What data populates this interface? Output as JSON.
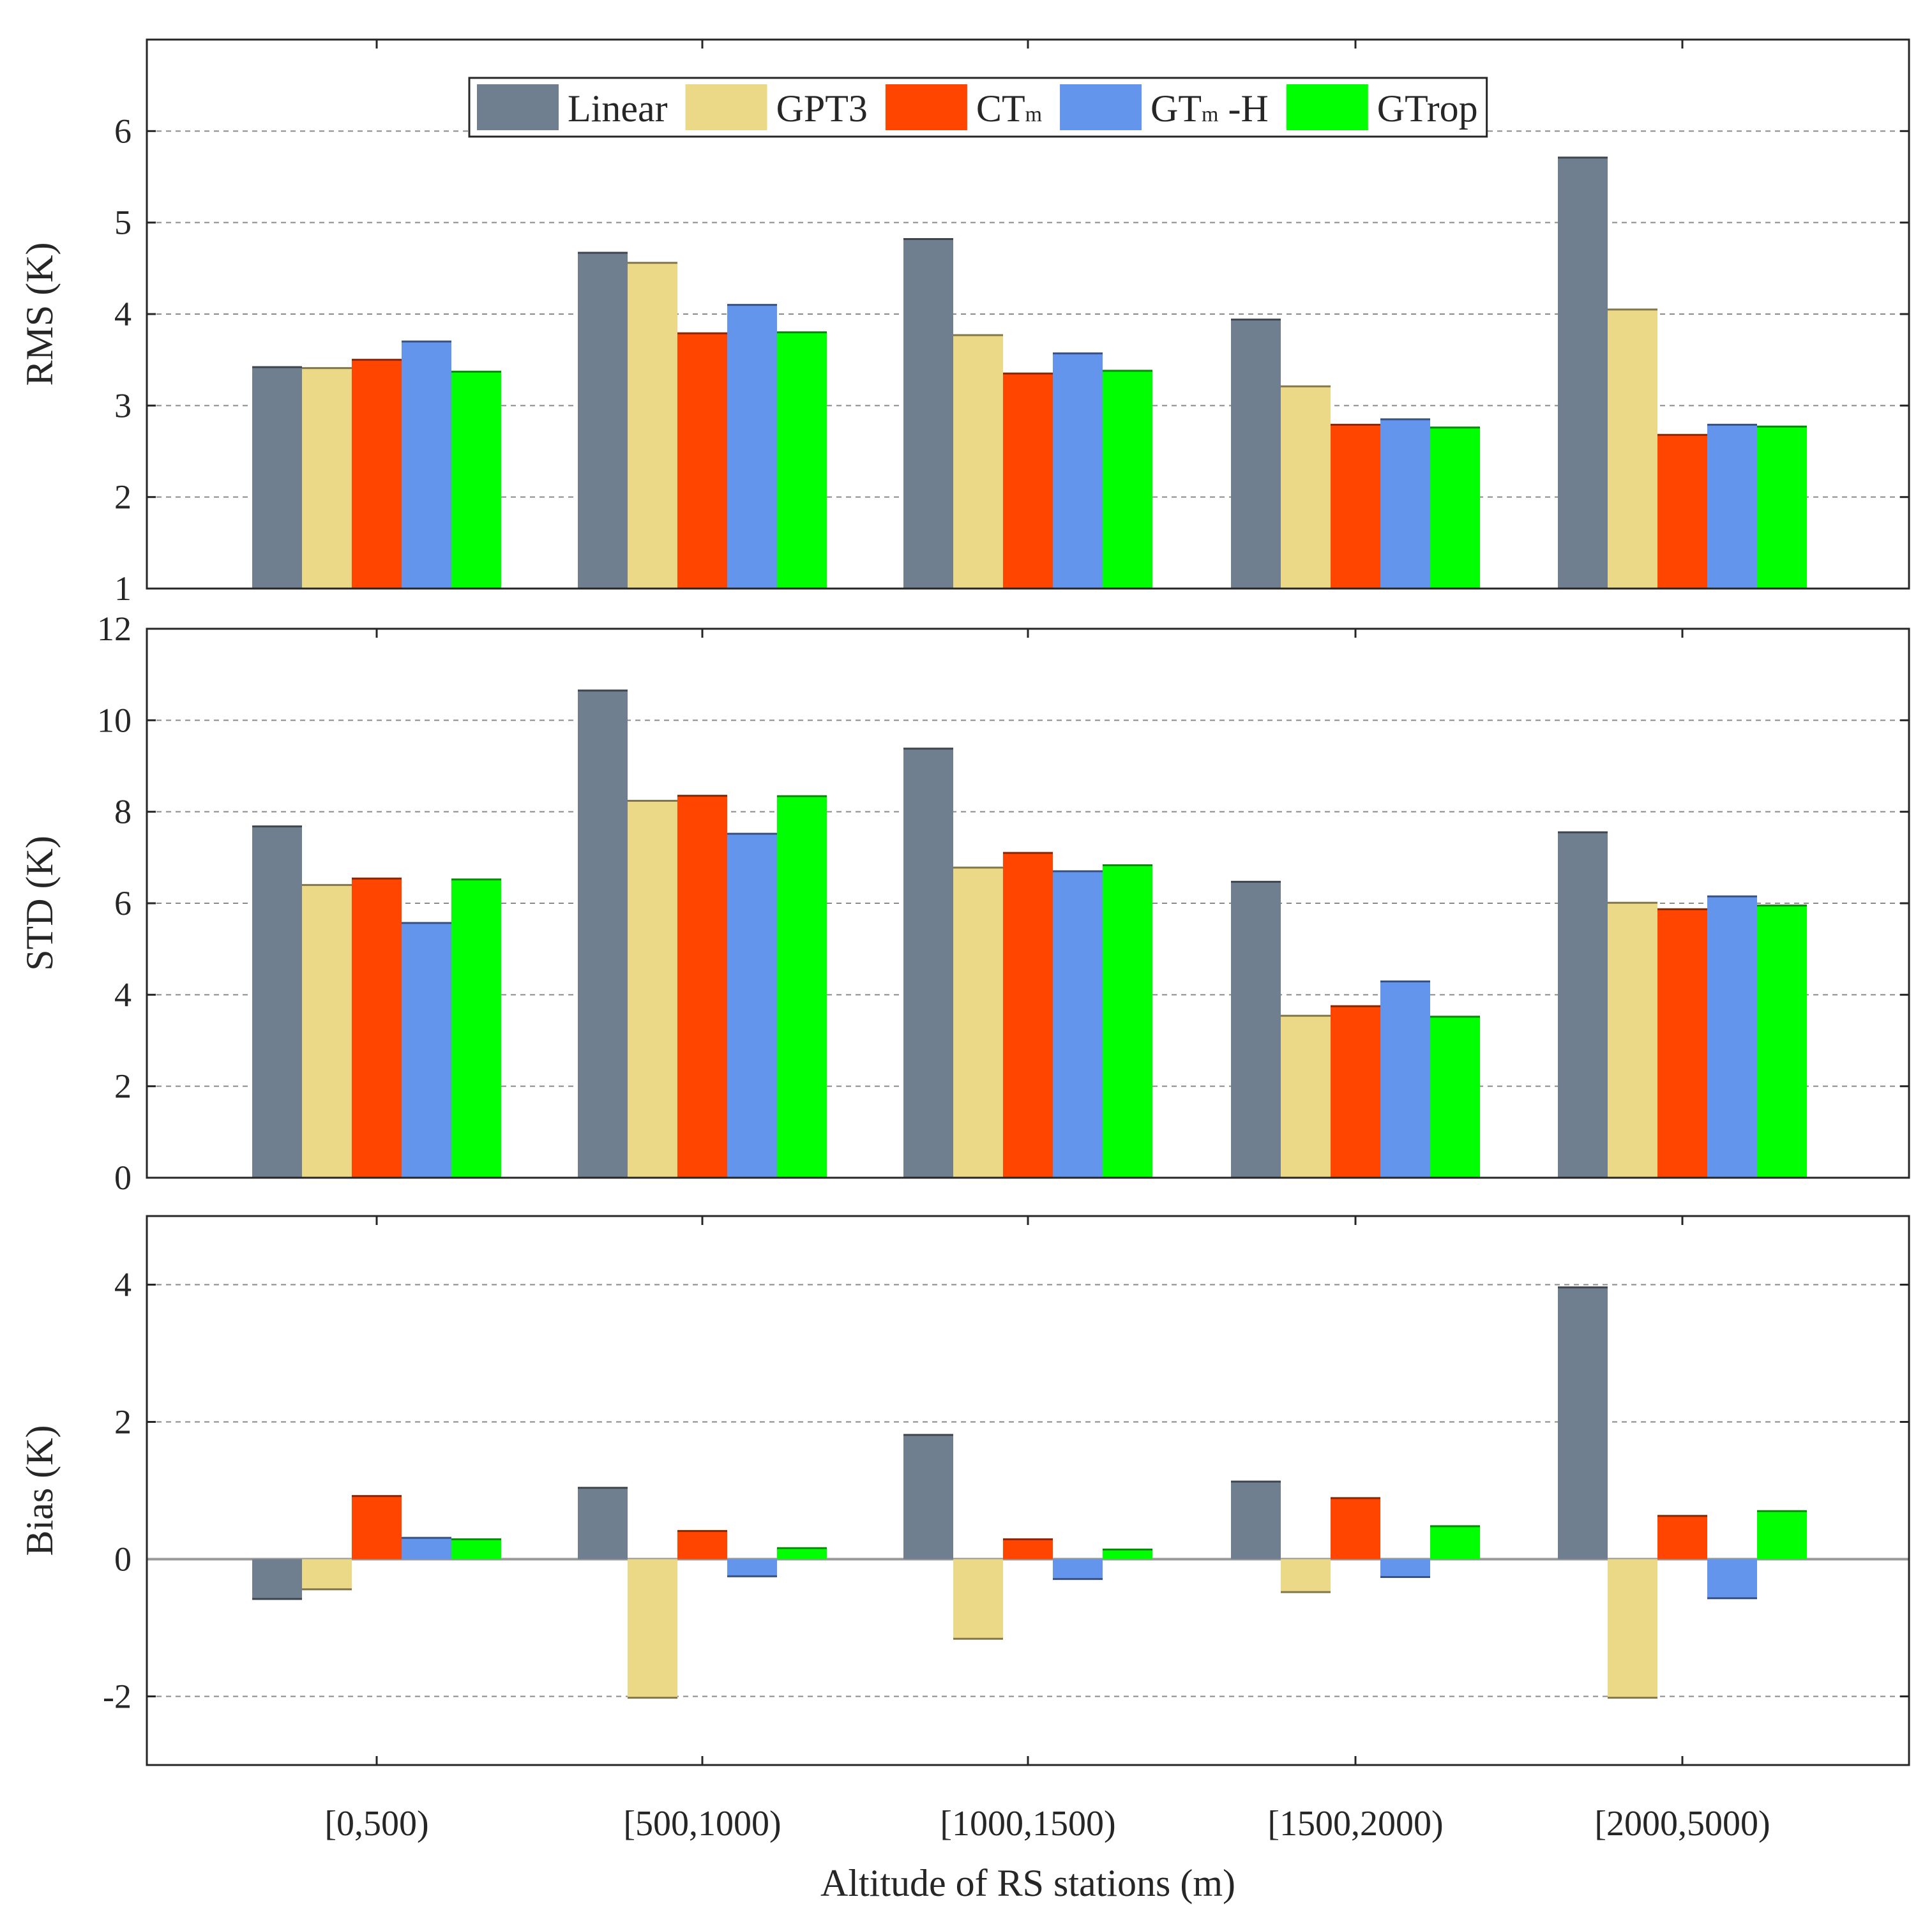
{
  "chart_data": [
    {
      "type": "bar",
      "ylabel": "RMS (K)",
      "ylim": [
        1,
        7
      ],
      "yticks": [
        1,
        2,
        3,
        4,
        5,
        6
      ],
      "grid": true,
      "categories": [
        "[0,500)",
        "[500,1000)",
        "[1000,1500)",
        "[1500,2000)",
        "[2000,5000)"
      ],
      "series": [
        {
          "name": "Linear",
          "values": [
            3.42,
            4.67,
            4.82,
            3.94,
            5.71
          ]
        },
        {
          "name": "GPT3",
          "values": [
            3.41,
            4.56,
            3.77,
            3.21,
            4.05
          ]
        },
        {
          "name": "CTm",
          "values": [
            3.5,
            3.79,
            3.35,
            2.79,
            2.68
          ]
        },
        {
          "name": "GTm-H",
          "values": [
            3.7,
            4.1,
            3.57,
            2.85,
            2.79
          ]
        },
        {
          "name": "GTrop",
          "values": [
            3.37,
            3.8,
            3.38,
            2.76,
            2.77
          ]
        }
      ]
    },
    {
      "type": "bar",
      "ylabel": "STD (K)",
      "ylim": [
        0,
        12
      ],
      "yticks": [
        0,
        2,
        4,
        6,
        8,
        10,
        12
      ],
      "grid": true,
      "categories": [
        "[0,500)",
        "[500,1000)",
        "[1000,1500)",
        "[1500,2000)",
        "[2000,5000)"
      ],
      "series": [
        {
          "name": "Linear",
          "values": [
            7.68,
            10.65,
            9.38,
            6.47,
            7.55
          ]
        },
        {
          "name": "GPT3",
          "values": [
            6.4,
            8.24,
            6.78,
            3.54,
            6.01
          ]
        },
        {
          "name": "CTm",
          "values": [
            6.54,
            8.35,
            7.1,
            3.75,
            5.87
          ]
        },
        {
          "name": "GTm-H",
          "values": [
            5.57,
            7.52,
            6.7,
            4.29,
            6.15
          ]
        },
        {
          "name": "GTrop",
          "values": [
            6.52,
            8.34,
            6.83,
            3.52,
            5.95
          ]
        }
      ]
    },
    {
      "type": "bar",
      "ylabel": "Bias (K)",
      "xlabel": "Altitude of RS stations (m)",
      "ylim": [
        -3,
        5
      ],
      "yticks": [
        -2,
        0,
        2,
        4
      ],
      "grid": true,
      "categories": [
        "[0,500)",
        "[500,1000)",
        "[1000,1500)",
        "[1500,2000)",
        "[2000,5000)"
      ],
      "series": [
        {
          "name": "Linear",
          "values": [
            -0.58,
            1.04,
            1.81,
            1.13,
            3.96
          ]
        },
        {
          "name": "GPT3",
          "values": [
            -0.44,
            -2.02,
            -1.16,
            -0.48,
            -2.02
          ]
        },
        {
          "name": "CTm",
          "values": [
            0.92,
            0.41,
            0.29,
            0.89,
            0.63
          ]
        },
        {
          "name": "GTm-H",
          "values": [
            0.31,
            -0.25,
            -0.29,
            -0.26,
            -0.57
          ]
        },
        {
          "name": "GTrop",
          "values": [
            0.29,
            0.16,
            0.14,
            0.48,
            0.7
          ]
        }
      ]
    }
  ],
  "legend": {
    "position": "top-center",
    "entries": [
      {
        "name": "Linear",
        "base": "Linear",
        "sub": "",
        "suffix": "",
        "color": "#6f7f8f"
      },
      {
        "name": "GPT3",
        "base": "GPT3",
        "sub": "",
        "suffix": "",
        "color": "#ecd987"
      },
      {
        "name": "CTm",
        "base": "CT",
        "sub": "m",
        "suffix": "",
        "color": "#ff4500"
      },
      {
        "name": "GTm-H",
        "base": "GT",
        "sub": "m",
        "suffix": " -H",
        "color": "#6495ed"
      },
      {
        "name": "GTrop",
        "base": "GTrop",
        "sub": "",
        "suffix": "",
        "color": "#00ff00"
      }
    ]
  }
}
